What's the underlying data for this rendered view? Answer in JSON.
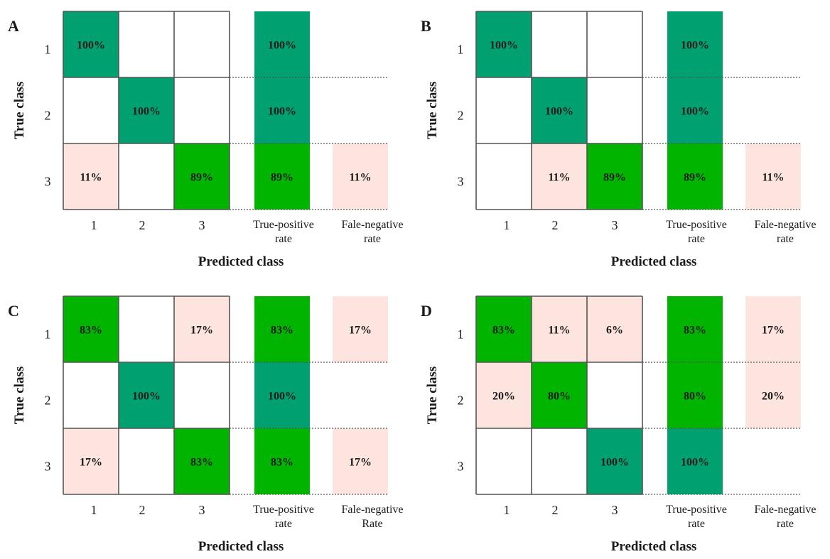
{
  "colors": {
    "teal": "#00a071",
    "green": "#00b400",
    "pink": "#fde4df",
    "grid": "#555555",
    "dotted": "#555555"
  },
  "chart_data": [
    {
      "type": "heatmap",
      "panel": "A",
      "xlabel": "Predicted class",
      "ylabel": "True class",
      "row_labels": [
        "1",
        "2",
        "3"
      ],
      "col_labels": [
        "1",
        "2",
        "3"
      ],
      "rate_labels": [
        [
          "True-positive",
          "rate"
        ],
        [
          "Fale-negative",
          "rate"
        ]
      ],
      "matrix": [
        [
          {
            "text": "100%",
            "color": "teal"
          },
          null,
          null
        ],
        [
          null,
          {
            "text": "100%",
            "color": "teal"
          },
          null
        ],
        [
          {
            "text": "11%",
            "color": "pink"
          },
          null,
          {
            "text": "89%",
            "color": "green"
          }
        ]
      ],
      "tpr": [
        {
          "text": "100%",
          "color": "teal"
        },
        {
          "text": "100%",
          "color": "teal"
        },
        {
          "text": "89%",
          "color": "green"
        }
      ],
      "fnr": [
        null,
        null,
        {
          "text": "11%",
          "color": "pink"
        }
      ]
    },
    {
      "type": "heatmap",
      "panel": "B",
      "xlabel": "Predicted class",
      "ylabel": "True class",
      "row_labels": [
        "1",
        "2",
        "3"
      ],
      "col_labels": [
        "1",
        "2",
        "3"
      ],
      "rate_labels": [
        [
          "True-positive",
          "rate"
        ],
        [
          "Fale-negative",
          "rate"
        ]
      ],
      "matrix": [
        [
          {
            "text": "100%",
            "color": "teal"
          },
          null,
          null
        ],
        [
          null,
          {
            "text": "100%",
            "color": "teal"
          },
          null
        ],
        [
          null,
          {
            "text": "11%",
            "color": "pink"
          },
          {
            "text": "89%",
            "color": "green"
          }
        ]
      ],
      "tpr": [
        {
          "text": "100%",
          "color": "teal"
        },
        {
          "text": "100%",
          "color": "teal"
        },
        {
          "text": "89%",
          "color": "green"
        }
      ],
      "fnr": [
        null,
        null,
        {
          "text": "11%",
          "color": "pink"
        }
      ]
    },
    {
      "type": "heatmap",
      "panel": "C",
      "xlabel": "Predicted class",
      "ylabel": "True class",
      "row_labels": [
        "1",
        "2",
        "3"
      ],
      "col_labels": [
        "1",
        "2",
        "3"
      ],
      "rate_labels": [
        [
          "True-positive",
          "rate"
        ],
        [
          "Fale-negative",
          "Rate"
        ]
      ],
      "matrix": [
        [
          {
            "text": "83%",
            "color": "green"
          },
          null,
          {
            "text": "17%",
            "color": "pink"
          }
        ],
        [
          null,
          {
            "text": "100%",
            "color": "teal"
          },
          null
        ],
        [
          {
            "text": "17%",
            "color": "pink"
          },
          null,
          {
            "text": "83%",
            "color": "green"
          }
        ]
      ],
      "tpr": [
        {
          "text": "83%",
          "color": "green"
        },
        {
          "text": "100%",
          "color": "teal"
        },
        {
          "text": "83%",
          "color": "green"
        }
      ],
      "fnr": [
        {
          "text": "17%",
          "color": "pink"
        },
        null,
        {
          "text": "17%",
          "color": "pink"
        }
      ]
    },
    {
      "type": "heatmap",
      "panel": "D",
      "xlabel": "Predicted class",
      "ylabel": "True class",
      "row_labels": [
        "1",
        "2",
        "3"
      ],
      "col_labels": [
        "1",
        "2",
        "3"
      ],
      "rate_labels": [
        [
          "True-positive",
          "rate"
        ],
        [
          "Fale-negative",
          "rate"
        ]
      ],
      "matrix": [
        [
          {
            "text": "83%",
            "color": "green"
          },
          {
            "text": "11%",
            "color": "pink"
          },
          {
            "text": "6%",
            "color": "pink"
          }
        ],
        [
          {
            "text": "20%",
            "color": "pink"
          },
          {
            "text": "80%",
            "color": "green"
          },
          null
        ],
        [
          null,
          null,
          {
            "text": "100%",
            "color": "teal"
          }
        ]
      ],
      "tpr": [
        {
          "text": "83%",
          "color": "green"
        },
        {
          "text": "80%",
          "color": "green"
        },
        {
          "text": "100%",
          "color": "teal"
        }
      ],
      "fnr": [
        {
          "text": "17%",
          "color": "pink"
        },
        {
          "text": "20%",
          "color": "pink"
        },
        null
      ]
    }
  ]
}
